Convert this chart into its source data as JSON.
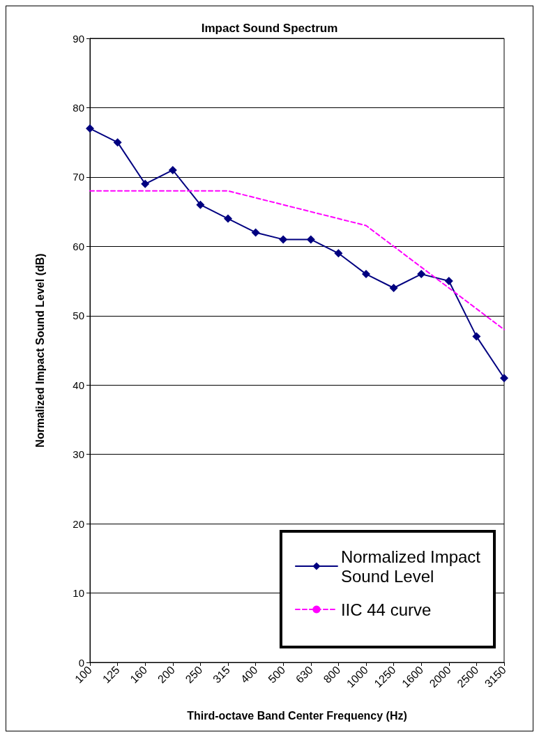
{
  "chart_data": {
    "type": "line",
    "title": "Impact Sound Spectrum",
    "xlabel": "Third-octave Band Center Frequency (Hz)",
    "ylabel": "Normalized Impact Sound Level (dB)",
    "categories": [
      "100",
      "125",
      "160",
      "200",
      "250",
      "315",
      "400",
      "500",
      "630",
      "800",
      "1000",
      "1250",
      "1600",
      "2000",
      "2500",
      "3150"
    ],
    "series": [
      {
        "name": "Normalized Impact Sound Level",
        "color": "#000080",
        "marker": "diamond",
        "line_style": "solid",
        "values": [
          77,
          75,
          69,
          71,
          66,
          64,
          62,
          61,
          61,
          59,
          56,
          54,
          56,
          55,
          47,
          41
        ]
      },
      {
        "name": "IIC 44 curve",
        "color": "#ff00ff",
        "marker": "none",
        "line_style": "dashed",
        "values": [
          68,
          68,
          68,
          68,
          68,
          68,
          67,
          66,
          65,
          64,
          63,
          60,
          57,
          54,
          51,
          48
        ]
      }
    ],
    "ylim": [
      0,
      90
    ],
    "yticks": [
      0,
      10,
      20,
      30,
      40,
      50,
      60,
      70,
      80,
      90
    ],
    "grid": "y",
    "legend": "bottom right"
  }
}
